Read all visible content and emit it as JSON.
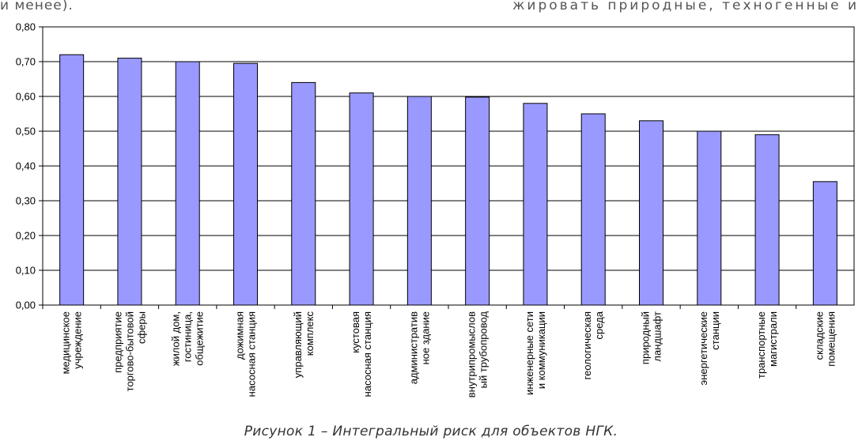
{
  "page": {
    "top_left_text": "и менее).",
    "top_right_text": "жировать природные, техногенные и",
    "caption": "Рисунок 1 – Интегральный риск для объектов НГК."
  },
  "chart_data": {
    "type": "bar",
    "title": "",
    "xlabel": "",
    "ylabel": "",
    "ylim": [
      0,
      0.8
    ],
    "ytick_labels": [
      "0,00",
      "0,10",
      "0,20",
      "0,30",
      "0,40",
      "0,50",
      "0,60",
      "0,70",
      "0,80"
    ],
    "grid": true,
    "bar_color": "#9999ff",
    "categories": [
      [
        "медицинское",
        "учреждение"
      ],
      [
        "предприятие",
        "торгово-бытовой",
        "сферы"
      ],
      [
        "жилой дом,",
        "гостиница,",
        "общежитие"
      ],
      [
        "дожимная",
        "насосная станция"
      ],
      [
        "управляющий",
        "комплекс"
      ],
      [
        "кустовая",
        "насосная станция"
      ],
      [
        "административ",
        "ное здание"
      ],
      [
        "внутрипромыслов",
        "ый трубопровод"
      ],
      [
        "инженерные сети",
        "и коммуникации"
      ],
      [
        "геологическая",
        "среда"
      ],
      [
        "природный",
        "ландшафт"
      ],
      [
        "энергетические",
        "станции"
      ],
      [
        "транспортные",
        "магистрали"
      ],
      [
        "складские",
        "помещения"
      ]
    ],
    "values": [
      0.72,
      0.71,
      0.7,
      0.695,
      0.64,
      0.61,
      0.6,
      0.598,
      0.58,
      0.55,
      0.53,
      0.5,
      0.49,
      0.355
    ]
  }
}
